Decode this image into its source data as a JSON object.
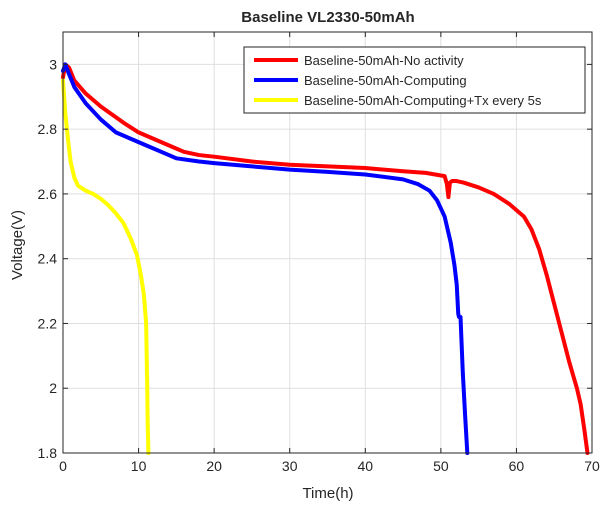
{
  "chart_data": {
    "type": "line",
    "title": "Baseline VL2330-50mAh",
    "xlabel": "Time(h)",
    "ylabel": "Voltage(V)",
    "xlim": [
      0,
      70
    ],
    "ylim": [
      1.8,
      3.1
    ],
    "xticks": [
      0,
      10,
      20,
      30,
      40,
      50,
      60,
      70
    ],
    "yticks": [
      1.8,
      2,
      2.2,
      2.4,
      2.6,
      2.8,
      3
    ],
    "xtick_labels": [
      "0",
      "10",
      "20",
      "30",
      "40",
      "50",
      "60",
      "70"
    ],
    "ytick_labels": [
      "1.8",
      "2",
      "2.2",
      "2.4",
      "2.6",
      "2.8",
      "3"
    ],
    "grid": true,
    "legend_position": "top-right",
    "series": [
      {
        "name": "Baseline-50mAh-No activity",
        "color": "#ff0000",
        "x": [
          0,
          0.3,
          0.8,
          1.5,
          3,
          5,
          8,
          10,
          12,
          14,
          16,
          18,
          20,
          25,
          30,
          35,
          40,
          45,
          48,
          50.5,
          50.8,
          51.0,
          51.2,
          51.5,
          52,
          53,
          55,
          57,
          59,
          61,
          62,
          63,
          64,
          65,
          66,
          67,
          68,
          68.5,
          69.0,
          69.4
        ],
        "y": [
          2.96,
          3.0,
          2.99,
          2.95,
          2.91,
          2.87,
          2.82,
          2.79,
          2.77,
          2.75,
          2.73,
          2.72,
          2.715,
          2.7,
          2.69,
          2.685,
          2.68,
          2.67,
          2.665,
          2.655,
          2.63,
          2.59,
          2.635,
          2.64,
          2.64,
          2.635,
          2.62,
          2.6,
          2.57,
          2.53,
          2.49,
          2.43,
          2.35,
          2.26,
          2.17,
          2.08,
          2.0,
          1.95,
          1.87,
          1.8
        ]
      },
      {
        "name": "Baseline-50mAh-Computing",
        "color": "#0000ff",
        "x": [
          0,
          0.3,
          0.8,
          1.5,
          3,
          5,
          7,
          9,
          11,
          13,
          15,
          18,
          20,
          25,
          30,
          35,
          40,
          45,
          47,
          48.5,
          49.5,
          50.5,
          51.3,
          51.8,
          52.1,
          52.3,
          52.4,
          52.6,
          52.9,
          53.2,
          53.5
        ],
        "y": [
          2.98,
          3.0,
          2.97,
          2.93,
          2.88,
          2.83,
          2.79,
          2.77,
          2.75,
          2.73,
          2.71,
          2.7,
          2.695,
          2.685,
          2.675,
          2.668,
          2.66,
          2.645,
          2.63,
          2.61,
          2.58,
          2.53,
          2.45,
          2.38,
          2.32,
          2.23,
          2.22,
          2.22,
          2.05,
          1.92,
          1.8
        ]
      },
      {
        "name": "Baseline-50mAh-Computing+Tx every 5s",
        "color": "#ffff00",
        "x": [
          0,
          0.3,
          0.7,
          1.0,
          1.5,
          2,
          3,
          4,
          5,
          6,
          7,
          8,
          9,
          9.8,
          10.3,
          10.7,
          11.0,
          11.15,
          11.2,
          11.3
        ],
        "y": [
          2.95,
          2.85,
          2.76,
          2.7,
          2.65,
          2.625,
          2.61,
          2.6,
          2.585,
          2.565,
          2.54,
          2.51,
          2.46,
          2.41,
          2.35,
          2.29,
          2.2,
          2.0,
          1.9,
          1.8
        ]
      }
    ]
  }
}
